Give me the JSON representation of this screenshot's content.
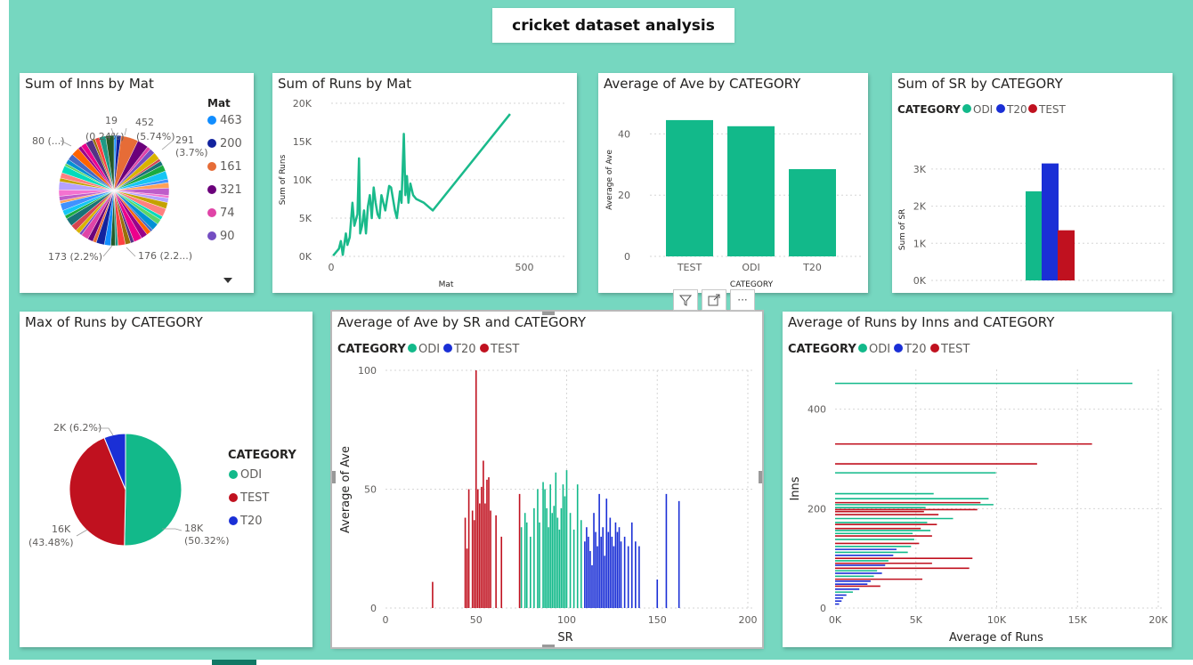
{
  "page": {
    "title": "cricket dataset analysis"
  },
  "colors": {
    "odi": "#12b98a",
    "t20": "#1a2fd6",
    "test": "#c0111f",
    "line": "#1aba8b"
  },
  "toolbar": {
    "filter_icon": "filter-icon",
    "focus_icon": "focus-mode-icon",
    "more_label": "···"
  },
  "chart_data": [
    {
      "id": "inns_by_mat",
      "type": "pie",
      "title": "Sum of Inns by Mat",
      "legend_title": "Mat",
      "legend": [
        {
          "label": "463",
          "color": "#118dff"
        },
        {
          "label": "200",
          "color": "#12239e"
        },
        {
          "label": "161",
          "color": "#e66c37"
        },
        {
          "label": "321",
          "color": "#6b007b"
        },
        {
          "label": "74",
          "color": "#e044a7"
        },
        {
          "label": "90",
          "color": "#744ec2"
        }
      ],
      "data_labels": [
        "19",
        "(0.24%)",
        "452",
        "(5.74%)",
        "291",
        "(3.7%)",
        "80 (...)",
        "173 (2.2%)",
        "176 (2.2...)"
      ]
    },
    {
      "id": "runs_by_mat",
      "type": "line",
      "title": "Sum of Runs by Mat",
      "xlabel": "Mat",
      "ylabel": "Sum of Runs",
      "xlim": [
        0,
        500
      ],
      "ylim": [
        0,
        20000
      ],
      "xticks": [
        "0",
        "500"
      ],
      "yticks": [
        "0K",
        "5K",
        "10K",
        "15K",
        "20K"
      ],
      "points": [
        [
          5,
          100
        ],
        [
          20,
          1000
        ],
        [
          25,
          2000
        ],
        [
          30,
          200
        ],
        [
          38,
          3000
        ],
        [
          42,
          1500
        ],
        [
          48,
          2500
        ],
        [
          55,
          7000
        ],
        [
          60,
          4000
        ],
        [
          68,
          5500
        ],
        [
          72,
          12800
        ],
        [
          75,
          3000
        ],
        [
          80,
          4000
        ],
        [
          85,
          6000
        ],
        [
          90,
          3000
        ],
        [
          95,
          6500
        ],
        [
          100,
          8000
        ],
        [
          105,
          5000
        ],
        [
          110,
          9000
        ],
        [
          115,
          7000
        ],
        [
          120,
          5500
        ],
        [
          125,
          5000
        ],
        [
          130,
          8000
        ],
        [
          140,
          6000
        ],
        [
          150,
          9200
        ],
        [
          155,
          9000
        ],
        [
          165,
          6000
        ],
        [
          170,
          5000
        ],
        [
          178,
          8500
        ],
        [
          182,
          7000
        ],
        [
          188,
          16000
        ],
        [
          192,
          8000
        ],
        [
          196,
          10500
        ],
        [
          200,
          7000
        ],
        [
          205,
          9500
        ],
        [
          212,
          8000
        ],
        [
          220,
          7500
        ],
        [
          240,
          7000
        ],
        [
          263,
          6000
        ],
        [
          463,
          18600
        ]
      ]
    },
    {
      "id": "ave_by_category",
      "type": "bar",
      "title": "Average of Ave by CATEGORY",
      "xlabel": "CATEGORY",
      "ylabel": "Average of Ave",
      "categories": [
        "TEST",
        "ODI",
        "T20"
      ],
      "values": [
        44.5,
        42.5,
        28.5
      ],
      "ylim": [
        0,
        50
      ],
      "yticks": [
        "0",
        "20",
        "40"
      ]
    },
    {
      "id": "sr_by_category",
      "type": "bar",
      "title": "Sum of SR by CATEGORY",
      "ylabel": "Sum of SR",
      "legend_title": "CATEGORY",
      "categories": [
        "ODI",
        "T20",
        "TEST"
      ],
      "values": [
        2400,
        3150,
        1350
      ],
      "ylim": [
        0,
        3500
      ],
      "yticks": [
        "0K",
        "1K",
        "2K",
        "3K"
      ]
    },
    {
      "id": "max_runs_by_category",
      "type": "pie",
      "title": "Max of Runs by CATEGORY",
      "legend_title": "CATEGORY",
      "slices": [
        {
          "label": "ODI",
          "value": 50.32,
          "color_key": "odi"
        },
        {
          "label": "TEST",
          "value": 43.48,
          "color_key": "test"
        },
        {
          "label": "T20",
          "value": 6.2,
          "color_key": "t20"
        }
      ],
      "data_labels": [
        "18K",
        "(50.32%)",
        "16K",
        "(43.48%)",
        "2K (6.2%)"
      ]
    },
    {
      "id": "ave_by_sr",
      "type": "bar",
      "title": "Average of Ave by SR and CATEGORY",
      "xlabel": "SR",
      "ylabel": "Average of Ave",
      "legend_title": "CATEGORY",
      "legend": [
        "ODI",
        "T20",
        "TEST"
      ],
      "xlim": [
        0,
        200
      ],
      "ylim": [
        0,
        100
      ],
      "xticks": [
        "0",
        "50",
        "100",
        "150",
        "200"
      ],
      "yticks": [
        "0",
        "50",
        "100"
      ],
      "test_points": [
        [
          26,
          11
        ],
        [
          44,
          38
        ],
        [
          45,
          25
        ],
        [
          46,
          50
        ],
        [
          48,
          41
        ],
        [
          49,
          37
        ],
        [
          50,
          100
        ],
        [
          51,
          50
        ],
        [
          52,
          44
        ],
        [
          53,
          51
        ],
        [
          54,
          62
        ],
        [
          55,
          44
        ],
        [
          56,
          54
        ],
        [
          57,
          55
        ],
        [
          58,
          41
        ],
        [
          61,
          39
        ],
        [
          64,
          30
        ],
        [
          74,
          48
        ]
      ],
      "odi_points": [
        [
          75,
          34
        ],
        [
          77,
          40
        ],
        [
          78,
          36
        ],
        [
          80,
          30
        ],
        [
          82,
          42
        ],
        [
          84,
          50
        ],
        [
          85,
          36
        ],
        [
          87,
          53
        ],
        [
          88,
          50
        ],
        [
          89,
          42
        ],
        [
          90,
          34
        ],
        [
          91,
          52
        ],
        [
          92,
          40
        ],
        [
          93,
          43
        ],
        [
          94,
          57
        ],
        [
          95,
          38
        ],
        [
          96,
          33
        ],
        [
          97,
          42
        ],
        [
          98,
          52
        ],
        [
          99,
          47
        ],
        [
          100,
          58
        ],
        [
          102,
          40
        ],
        [
          104,
          33
        ],
        [
          106,
          52
        ],
        [
          108,
          37
        ]
      ],
      "t20_points": [
        [
          110,
          28
        ],
        [
          111,
          34
        ],
        [
          112,
          30
        ],
        [
          113,
          24
        ],
        [
          114,
          18
        ],
        [
          115,
          40
        ],
        [
          116,
          32
        ],
        [
          117,
          26
        ],
        [
          118,
          48
        ],
        [
          119,
          30
        ],
        [
          120,
          34
        ],
        [
          121,
          22
        ],
        [
          122,
          46
        ],
        [
          123,
          32
        ],
        [
          124,
          38
        ],
        [
          125,
          30
        ],
        [
          126,
          26
        ],
        [
          127,
          36
        ],
        [
          128,
          32
        ],
        [
          129,
          34
        ],
        [
          130,
          28
        ],
        [
          132,
          30
        ],
        [
          134,
          26
        ],
        [
          136,
          36
        ],
        [
          138,
          28
        ],
        [
          140,
          26
        ],
        [
          150,
          12
        ],
        [
          155,
          48
        ],
        [
          162,
          45
        ]
      ]
    },
    {
      "id": "runs_by_inns",
      "type": "bar",
      "title": "Average of Runs by Inns and CATEGORY",
      "xlabel": "Average of Runs",
      "ylabel": "Inns",
      "legend_title": "CATEGORY",
      "legend": [
        "ODI",
        "T20",
        "TEST"
      ],
      "xlim": [
        0,
        20000
      ],
      "ylim": [
        0,
        480
      ],
      "xticks": [
        "0K",
        "5K",
        "10K",
        "15K",
        "20K"
      ],
      "yticks": [
        "0",
        "200",
        "400"
      ],
      "bars": [
        {
          "inns": 452,
          "runs": 18400,
          "cat": "odi"
        },
        {
          "inns": 330,
          "runs": 15900,
          "cat": "test"
        },
        {
          "inns": 290,
          "runs": 12500,
          "cat": "test"
        },
        {
          "inns": 272,
          "runs": 9950,
          "cat": "odi"
        },
        {
          "inns": 230,
          "runs": 6100,
          "cat": "odi"
        },
        {
          "inns": 220,
          "runs": 9500,
          "cat": "odi"
        },
        {
          "inns": 212,
          "runs": 9000,
          "cat": "test"
        },
        {
          "inns": 208,
          "runs": 9800,
          "cat": "odi"
        },
        {
          "inns": 202,
          "runs": 5600,
          "cat": "odi"
        },
        {
          "inns": 198,
          "runs": 8800,
          "cat": "test"
        },
        {
          "inns": 194,
          "runs": 5500,
          "cat": "test"
        },
        {
          "inns": 188,
          "runs": 6400,
          "cat": "test"
        },
        {
          "inns": 180,
          "runs": 7300,
          "cat": "odi"
        },
        {
          "inns": 172,
          "runs": 5700,
          "cat": "odi"
        },
        {
          "inns": 168,
          "runs": 6300,
          "cat": "test"
        },
        {
          "inns": 160,
          "runs": 5300,
          "cat": "test"
        },
        {
          "inns": 156,
          "runs": 5900,
          "cat": "odi"
        },
        {
          "inns": 150,
          "runs": 4800,
          "cat": "odi"
        },
        {
          "inns": 145,
          "runs": 6000,
          "cat": "test"
        },
        {
          "inns": 138,
          "runs": 4900,
          "cat": "odi"
        },
        {
          "inns": 130,
          "runs": 5200,
          "cat": "test"
        },
        {
          "inns": 124,
          "runs": 4700,
          "cat": "odi"
        },
        {
          "inns": 118,
          "runs": 3800,
          "cat": "t20"
        },
        {
          "inns": 112,
          "runs": 4500,
          "cat": "odi"
        },
        {
          "inns": 106,
          "runs": 3600,
          "cat": "t20"
        },
        {
          "inns": 100,
          "runs": 8500,
          "cat": "test"
        },
        {
          "inns": 95,
          "runs": 3300,
          "cat": "odi"
        },
        {
          "inns": 90,
          "runs": 6000,
          "cat": "test"
        },
        {
          "inns": 86,
          "runs": 3100,
          "cat": "t20"
        },
        {
          "inns": 80,
          "runs": 8300,
          "cat": "test"
        },
        {
          "inns": 75,
          "runs": 2600,
          "cat": "odi"
        },
        {
          "inns": 70,
          "runs": 2900,
          "cat": "t20"
        },
        {
          "inns": 64,
          "runs": 2400,
          "cat": "odi"
        },
        {
          "inns": 58,
          "runs": 5400,
          "cat": "test"
        },
        {
          "inns": 54,
          "runs": 2200,
          "cat": "t20"
        },
        {
          "inns": 48,
          "runs": 2000,
          "cat": "t20"
        },
        {
          "inns": 44,
          "runs": 2800,
          "cat": "test"
        },
        {
          "inns": 38,
          "runs": 1500,
          "cat": "t20"
        },
        {
          "inns": 32,
          "runs": 1100,
          "cat": "odi"
        },
        {
          "inns": 26,
          "runs": 700,
          "cat": "t20"
        },
        {
          "inns": 20,
          "runs": 500,
          "cat": "t20"
        },
        {
          "inns": 14,
          "runs": 400,
          "cat": "t20"
        },
        {
          "inns": 8,
          "runs": 250,
          "cat": "t20"
        }
      ]
    }
  ]
}
